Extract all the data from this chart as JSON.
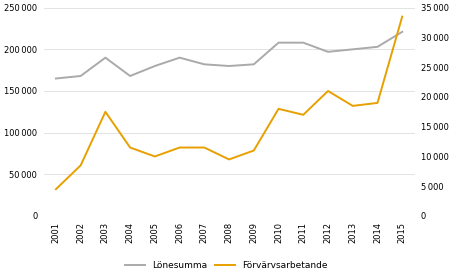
{
  "years": [
    2001,
    2002,
    2003,
    2004,
    2005,
    2006,
    2007,
    2008,
    2009,
    2010,
    2011,
    2012,
    2013,
    2014,
    2015
  ],
  "lonesumma": [
    165000,
    168000,
    190000,
    168000,
    180000,
    190000,
    182000,
    180000,
    182000,
    208000,
    208000,
    197000,
    200000,
    203000,
    221000
  ],
  "forvarvsarbetande": [
    4500,
    8500,
    17500,
    11500,
    10000,
    11500,
    11500,
    9500,
    11000,
    18000,
    17000,
    21000,
    18500,
    19000,
    33500
  ],
  "lonesumma_color": "#aaaaaa",
  "forvarvsarbetande_color": "#e8a000",
  "left_ylim": [
    0,
    250000
  ],
  "right_ylim": [
    0,
    35000
  ],
  "left_yticks": [
    0,
    50000,
    100000,
    150000,
    200000,
    250000
  ],
  "right_yticks": [
    0,
    5000,
    10000,
    15000,
    20000,
    25000,
    30000,
    35000
  ],
  "legend_lonesumma": "Lönesumma",
  "legend_forvarvsarbetande": "Förvärvsarbetande",
  "background_color": "#ffffff",
  "grid_color": "#d8d8d8",
  "linewidth": 1.4,
  "tick_fontsize": 6.0,
  "legend_fontsize": 6.5
}
